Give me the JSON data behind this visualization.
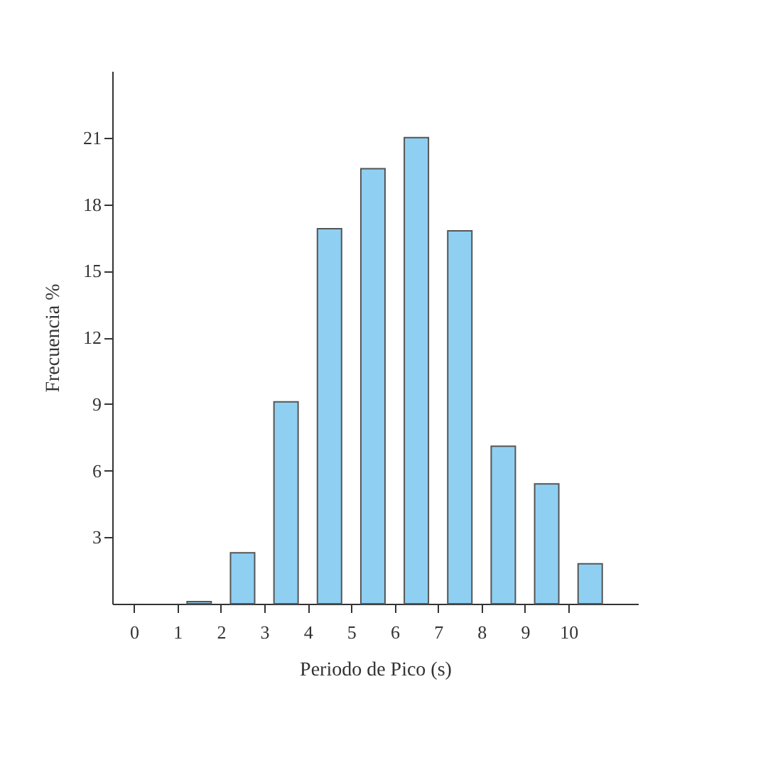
{
  "chart_data": {
    "type": "histogram",
    "xlabel": "Periodo de Pico (s)",
    "ylabel": "Frecuencia %",
    "bins": [
      0,
      1,
      2,
      3,
      4,
      5,
      6,
      7,
      8,
      9,
      10,
      11
    ],
    "values": [
      null,
      0.1,
      2.3,
      9.1,
      16.9,
      19.6,
      21.0,
      16.8,
      7.1,
      5.4,
      1.8
    ],
    "color": "#8fd0f2",
    "xlim": [
      -0.5,
      11.6
    ],
    "xticks": [
      0,
      1,
      2,
      3,
      4,
      5,
      6,
      7,
      8,
      9,
      10
    ],
    "ylim": [
      0,
      24
    ],
    "yticks": [
      3,
      6,
      9,
      12,
      15,
      18,
      21
    ],
    "grid": false
  }
}
